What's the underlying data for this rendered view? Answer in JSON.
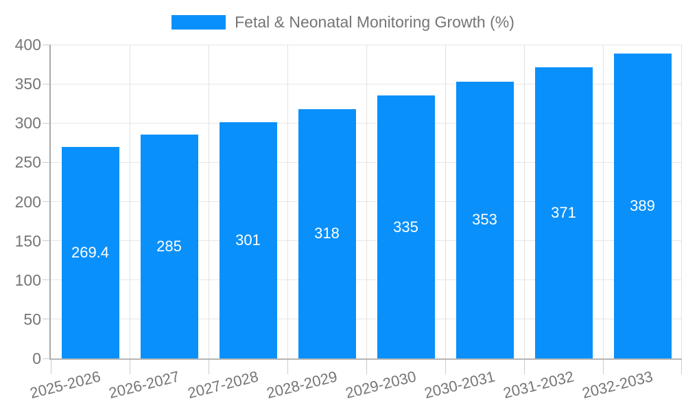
{
  "chart_data": {
    "type": "bar",
    "legend": "Fetal & Neonatal Monitoring Growth (%)",
    "legend_position": "top",
    "categories": [
      "2025-2026",
      "2026-2027",
      "2027-2028",
      "2028-2029",
      "2029-2030",
      "2030-2031",
      "2031-2032",
      "2032-2033"
    ],
    "values": [
      269.4,
      285,
      301,
      318,
      335,
      353,
      371,
      389
    ],
    "value_labels": [
      "269.4",
      "285",
      "301",
      "318",
      "335",
      "353",
      "371",
      "389"
    ],
    "title": "",
    "xlabel": "",
    "ylabel": "",
    "ylim": [
      0,
      400
    ],
    "yticks": [
      0,
      50,
      100,
      150,
      200,
      250,
      300,
      350,
      400
    ],
    "grid": true,
    "value_label_position": "middle-inside",
    "colors": {
      "bar": "#0a90fa",
      "grid_h": "#e6e6e6",
      "grid_v": "#e2e2e2",
      "axis_y": "#a8a8a8",
      "axis_x": "#b5b5b5",
      "tick": "#cccccc",
      "label_text": "#757575",
      "value_text": "#ffffff",
      "background": "#ffffff"
    }
  }
}
